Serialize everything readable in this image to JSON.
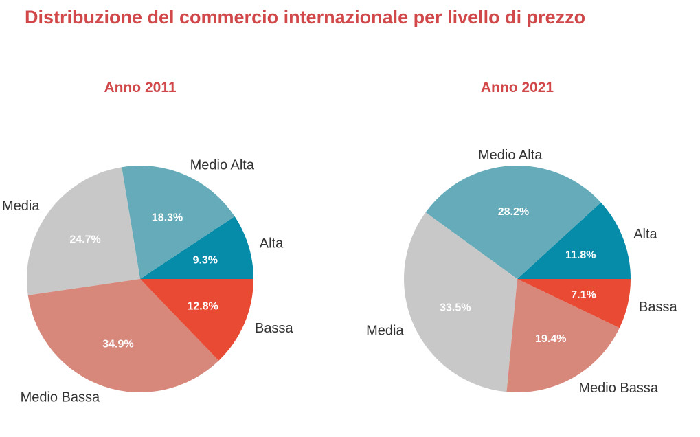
{
  "title": "Distribuzione del commercio internazionale per livello di prezzo",
  "colors": {
    "title": "#d1484a",
    "Alta": "#068ba9",
    "Medio Alta": "#66abb9",
    "Media": "#c8c8c8",
    "Medio Bassa": "#d8877b",
    "Bassa": "#e84a33"
  },
  "chart_data": [
    {
      "type": "pie",
      "title": "Anno 2011",
      "slices": [
        {
          "label": "Alta",
          "value": 9.3,
          "value_label": "9.3%"
        },
        {
          "label": "Medio Alta",
          "value": 18.3,
          "value_label": "18.3%"
        },
        {
          "label": "Media",
          "value": 24.7,
          "value_label": "24.7%"
        },
        {
          "label": "Medio Bassa",
          "value": 34.9,
          "value_label": "34.9%"
        },
        {
          "label": "Bassa",
          "value": 12.8,
          "value_label": "12.8%"
        }
      ]
    },
    {
      "type": "pie",
      "title": "Anno 2021",
      "slices": [
        {
          "label": "Alta",
          "value": 11.8,
          "value_label": "11.8%"
        },
        {
          "label": "Medio Alta",
          "value": 28.2,
          "value_label": "28.2%"
        },
        {
          "label": "Media",
          "value": 33.5,
          "value_label": "33.5%"
        },
        {
          "label": "Medio Bassa",
          "value": 19.4,
          "value_label": "19.4%"
        },
        {
          "label": "Bassa",
          "value": 7.1,
          "value_label": "7.1%"
        }
      ]
    }
  ]
}
